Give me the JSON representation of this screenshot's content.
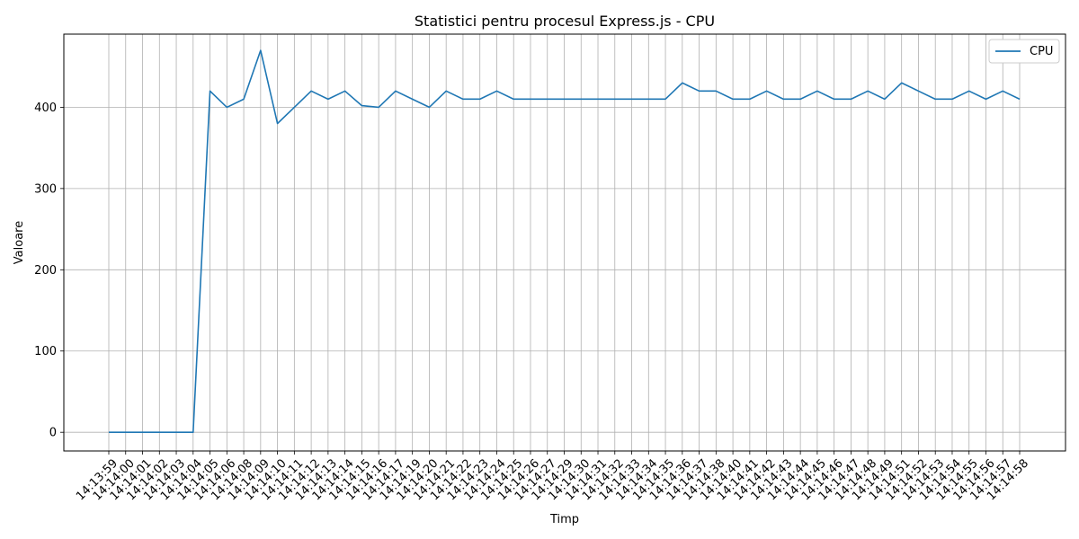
{
  "chart_data": {
    "type": "line",
    "title": "Statistici pentru procesul Express.js - CPU",
    "xlabel": "Timp",
    "ylabel": "Valoare",
    "ylim": [
      -23,
      490
    ],
    "yticks": [
      0,
      100,
      200,
      300,
      400
    ],
    "grid": true,
    "legend_position": "top-right",
    "x": [
      "14:13:59",
      "14:14:00",
      "14:14:01",
      "14:14:02",
      "14:14:03",
      "14:14:04",
      "14:14:05",
      "14:14:06",
      "14:14:08",
      "14:14:09",
      "14:14:10",
      "14:14:11",
      "14:14:12",
      "14:14:13",
      "14:14:14",
      "14:14:15",
      "14:14:16",
      "14:14:17",
      "14:14:19",
      "14:14:20",
      "14:14:21",
      "14:14:22",
      "14:14:23",
      "14:14:24",
      "14:14:25",
      "14:14:26",
      "14:14:27",
      "14:14:29",
      "14:14:30",
      "14:14:31",
      "14:14:32",
      "14:14:33",
      "14:14:34",
      "14:14:35",
      "14:14:36",
      "14:14:37",
      "14:14:38",
      "14:14:40",
      "14:14:41",
      "14:14:42",
      "14:14:43",
      "14:14:44",
      "14:14:45",
      "14:14:46",
      "14:14:47",
      "14:14:48",
      "14:14:49",
      "14:14:51",
      "14:14:52",
      "14:14:53",
      "14:14:54",
      "14:14:55",
      "14:14:56",
      "14:14:57",
      "14:14:58"
    ],
    "series": [
      {
        "name": "CPU",
        "color": "#1f77b4",
        "values": [
          0,
          0,
          0,
          0,
          0,
          0,
          420,
          400,
          410,
          470,
          380,
          400,
          420,
          410,
          420,
          402,
          400,
          420,
          410,
          400,
          420,
          410,
          410,
          420,
          410,
          410,
          410,
          410,
          410,
          410,
          410,
          410,
          410,
          410,
          430,
          420,
          420,
          410,
          410,
          420,
          410,
          410,
          420,
          410,
          410,
          420,
          410,
          430,
          420,
          410,
          410,
          420,
          410,
          420,
          410
        ]
      }
    ]
  }
}
